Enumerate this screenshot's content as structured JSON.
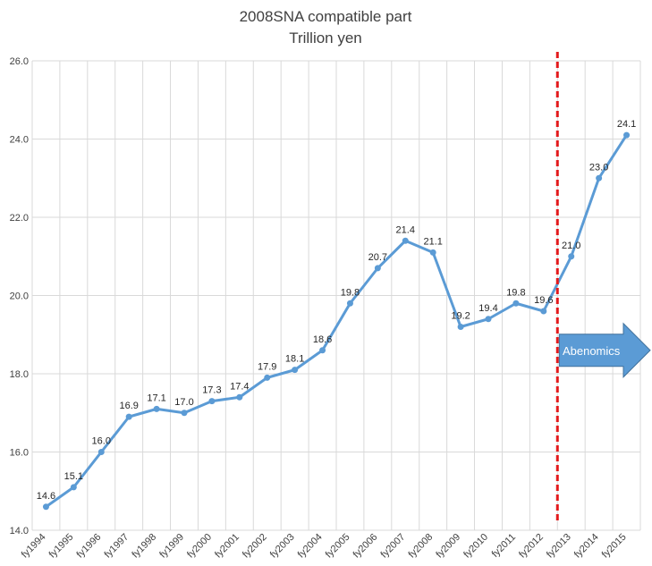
{
  "chart_data": {
    "type": "line",
    "title": "2008SNA compatible part",
    "subtitle": "Trillion yen",
    "xlabel": "",
    "ylabel": "",
    "categories": [
      "fy1994",
      "fy1995",
      "fy1996",
      "fy1997",
      "fy1998",
      "fy1999",
      "fy2000",
      "fy2001",
      "fy2002",
      "fy2003",
      "fy2004",
      "fy2005",
      "fy2006",
      "fy2007",
      "fy2008",
      "fy2009",
      "fy2010",
      "fy2011",
      "fy2012",
      "fy2013",
      "fy2014",
      "fy2015"
    ],
    "values": [
      14.6,
      15.1,
      16.0,
      16.9,
      17.1,
      17.0,
      17.3,
      17.4,
      17.9,
      18.1,
      18.6,
      19.8,
      20.7,
      21.4,
      21.1,
      19.2,
      19.4,
      19.8,
      19.6,
      21.0,
      23.0,
      24.1
    ],
    "data_labels": [
      "14.6",
      "15.1",
      "16.0",
      "16.9",
      "17.1",
      "17.0",
      "17.3",
      "17.4",
      "17.9",
      "18.1",
      "18.6",
      "19.8",
      "20.7",
      "21.4",
      "21.1",
      "19.2",
      "19.4",
      "19.8",
      "19.6",
      "21.0",
      "23.0",
      "24.1"
    ],
    "ylim": [
      14.0,
      26.0
    ],
    "yticks": [
      "14.0",
      "16.0",
      "18.0",
      "20.0",
      "22.0",
      "24.0",
      "26.0"
    ],
    "grid": true,
    "legend": "none",
    "line_color": "#5b9bd5",
    "annotation": {
      "type": "vertical-dashed-line",
      "between": [
        "fy2012",
        "fy2013"
      ],
      "color": "#e31a1c",
      "arrow_label": "Abenomics",
      "arrow_color": "#5b9bd5"
    }
  }
}
